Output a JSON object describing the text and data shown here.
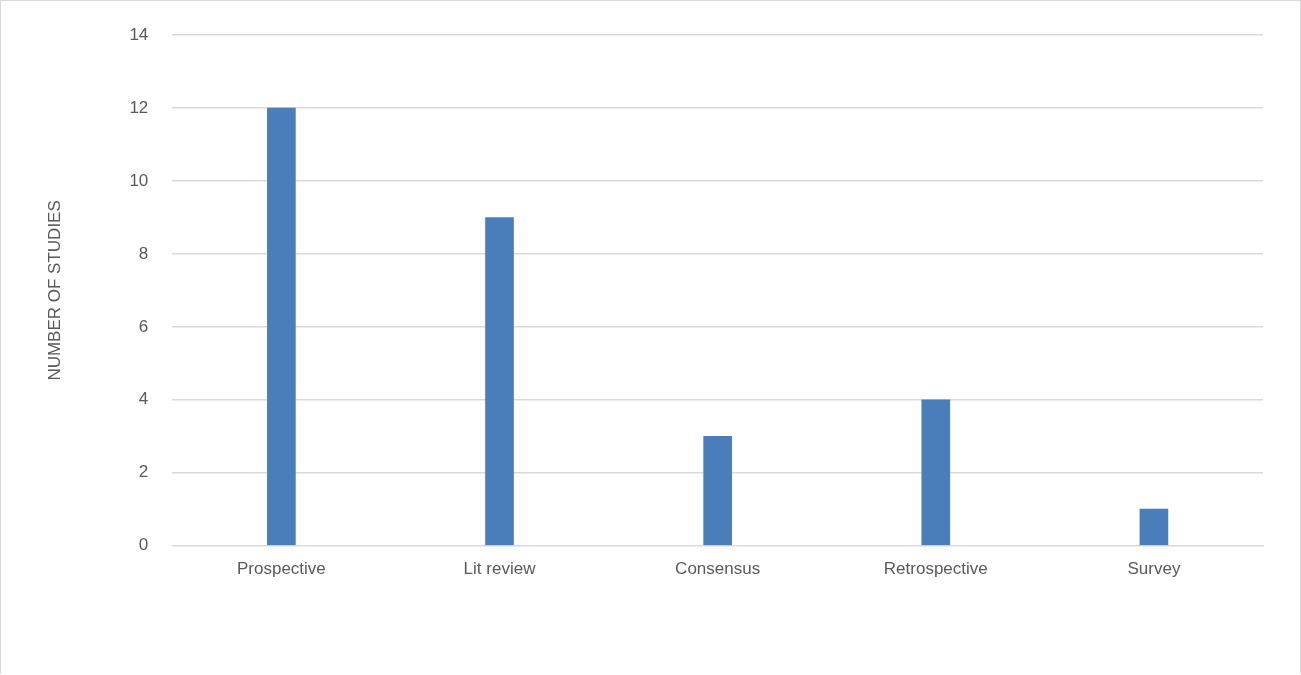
{
  "chart_data": {
    "type": "bar",
    "ylabel": "NUMBER OF STUDIES",
    "categories": [
      "Prospective",
      "Lit review",
      "Consensus",
      "Retrospective",
      "Survey"
    ],
    "values": [
      12,
      9,
      3,
      4,
      1
    ],
    "color": "#4a7ebb",
    "ylim": [
      0,
      14
    ],
    "yticks": [
      0,
      2,
      4,
      6,
      8,
      10,
      12,
      14
    ],
    "grid": "y",
    "legend": false
  }
}
